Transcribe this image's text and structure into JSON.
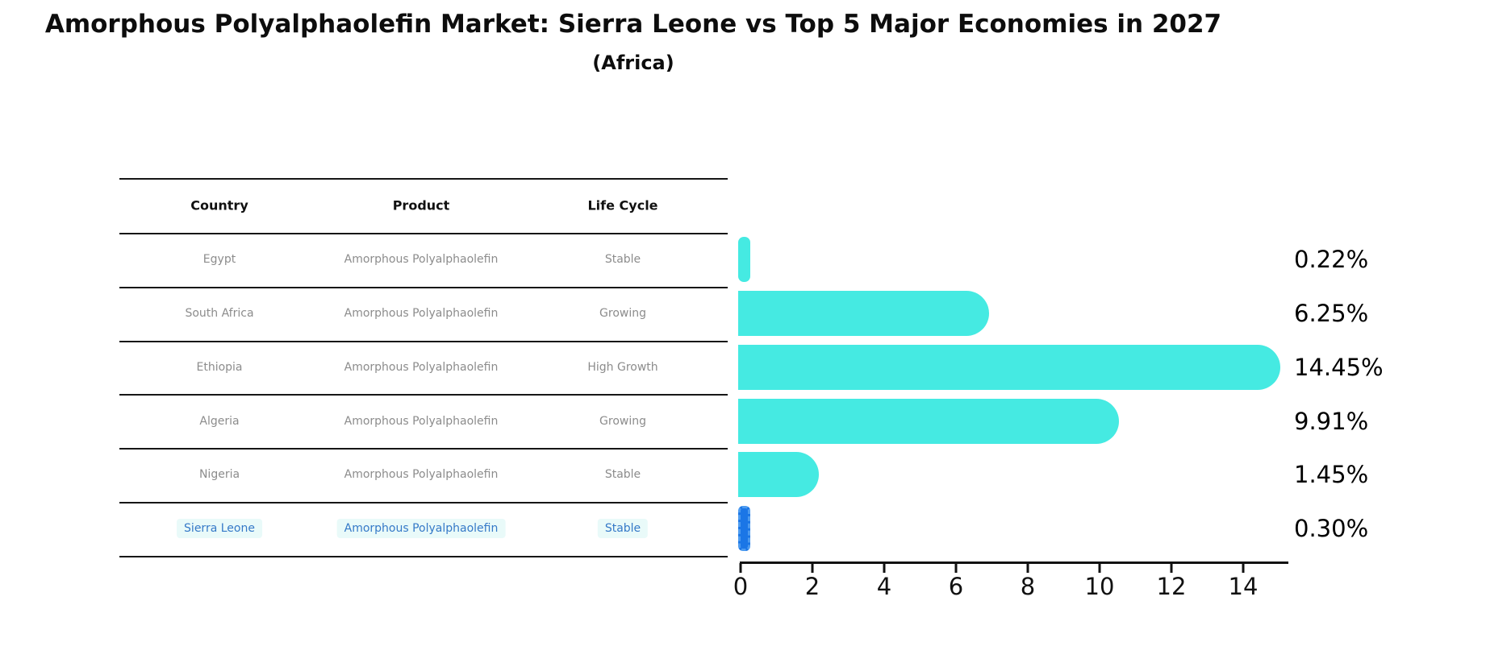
{
  "title": "Amorphous Polyalphaolefin Market: Sierra Leone vs Top 5 Major Economies in 2027",
  "subtitle": "(Africa)",
  "table": {
    "columns": [
      "Country",
      "Product",
      "Life Cycle"
    ],
    "rows": [
      {
        "country": "Egypt",
        "product": "Amorphous Polyalphaolefin",
        "life_cycle": "Stable",
        "highlight": false
      },
      {
        "country": "South Africa",
        "product": "Amorphous Polyalphaolefin",
        "life_cycle": "Growing",
        "highlight": false
      },
      {
        "country": "Ethiopia",
        "product": "Amorphous Polyalphaolefin",
        "life_cycle": "High Growth",
        "highlight": false
      },
      {
        "country": "Algeria",
        "product": "Amorphous Polyalphaolefin",
        "life_cycle": "Growing",
        "highlight": false
      },
      {
        "country": "Nigeria",
        "product": "Amorphous Polyalphaolefin",
        "life_cycle": "Stable",
        "highlight": false
      },
      {
        "country": "Sierra Leone",
        "product": "Amorphous Polyalphaolefin",
        "life_cycle": "Stable",
        "highlight": true
      }
    ]
  },
  "chart_data": {
    "type": "bar",
    "orientation": "horizontal",
    "title": "Amorphous Polyalphaolefin Market: Sierra Leone vs Top 5 Major Economies in 2027",
    "subtitle": "(Africa)",
    "categories": [
      "Egypt",
      "South Africa",
      "Ethiopia",
      "Algeria",
      "Nigeria",
      "Sierra Leone"
    ],
    "values": [
      0.22,
      6.25,
      14.45,
      9.91,
      1.45,
      0.3
    ],
    "value_labels": [
      "0.22%",
      "6.25%",
      "14.45%",
      "9.91%",
      "1.45%",
      "0.30%"
    ],
    "xlabel": "",
    "ylabel": "",
    "xlim": [
      0,
      15.2
    ],
    "x_ticks": [
      0,
      2,
      4,
      6,
      8,
      10,
      12,
      14
    ],
    "grid": false,
    "legend": false,
    "highlight_index": 5
  },
  "colors": {
    "bar_fill": "#45eae2",
    "highlight_bar_fill": "#1b76e6",
    "highlight_bar_edge": "#4d9bf0",
    "highlight_text": "#3579c8",
    "row_text": "#8c8c8c",
    "header_text": "#111111",
    "line": "#161616"
  }
}
